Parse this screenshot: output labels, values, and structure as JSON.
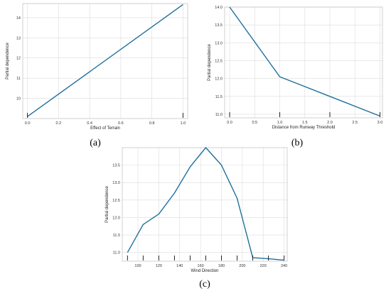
{
  "chart_data": [
    {
      "panel": "(a)",
      "type": "line",
      "xlabel": "Effect of Terrain",
      "ylabel": "Partial dependence",
      "x": [
        0.0,
        1.0
      ],
      "values": [
        9.1,
        14.65
      ],
      "xlim": [
        -0.03,
        1.03
      ],
      "ylim": [
        9.0,
        14.7
      ],
      "xticks": [
        0.0,
        0.2,
        0.4,
        0.6,
        0.8,
        1.0
      ],
      "xtick_labels": [
        "0.0",
        "0.2",
        "0.4",
        "0.6",
        "0.8",
        "1.0"
      ],
      "yticks": [
        10,
        11,
        12,
        13,
        14
      ],
      "ytick_labels": [
        "10",
        "11",
        "12",
        "13",
        "14"
      ],
      "rug": [
        0.0,
        1.0
      ],
      "grid": true,
      "color": "#1f6f9c"
    },
    {
      "panel": "(b)",
      "type": "line",
      "xlabel": "Distance from Runway Threshold",
      "ylabel": "Partial dependence",
      "x": [
        0.0,
        1.0,
        2.0,
        3.0
      ],
      "values": [
        14.0,
        12.05,
        11.5,
        10.95
      ],
      "xlim": [
        -0.1,
        3.05
      ],
      "ylim": [
        10.9,
        14.0
      ],
      "xticks": [
        0.0,
        0.5,
        1.0,
        1.5,
        2.0,
        2.5,
        3.0
      ],
      "xtick_labels": [
        "0.0",
        "0.5",
        "1.0",
        "1.5",
        "2.0",
        "2.5",
        "3.0"
      ],
      "yticks": [
        11.0,
        11.5,
        12.0,
        12.5,
        13.0,
        13.5,
        14.0
      ],
      "ytick_labels": [
        "11.0",
        "11.5",
        "12.0",
        "12.5",
        "13.0",
        "13.5",
        "14.0"
      ],
      "rug": [
        0.0,
        1.0,
        2.0,
        3.0
      ],
      "grid": true,
      "color": "#1f6f9c"
    },
    {
      "panel": "(c)",
      "type": "line",
      "xlabel": "Wind Direction",
      "ylabel": "Partial dependence",
      "x": [
        90,
        105,
        120,
        135,
        150,
        165,
        180,
        195,
        210,
        225,
        240
      ],
      "values": [
        11.0,
        11.8,
        12.1,
        12.7,
        13.45,
        14.0,
        13.5,
        12.55,
        10.85,
        10.82,
        10.78
      ],
      "xlim": [
        85,
        243
      ],
      "ylim": [
        10.75,
        14.0
      ],
      "xticks": [
        100,
        120,
        140,
        160,
        180,
        200,
        220,
        240
      ],
      "xtick_labels": [
        "100",
        "120",
        "140",
        "160",
        "180",
        "200",
        "220",
        "240"
      ],
      "yticks": [
        11.0,
        11.5,
        12.0,
        12.5,
        13.0,
        13.5
      ],
      "ytick_labels": [
        "11.0",
        "11.5",
        "12.0",
        "12.5",
        "13.0",
        "13.5"
      ],
      "rug": [
        90,
        105,
        120,
        135,
        150,
        165,
        180,
        195,
        210,
        225,
        240
      ],
      "grid": true,
      "color": "#1f6f9c"
    }
  ]
}
